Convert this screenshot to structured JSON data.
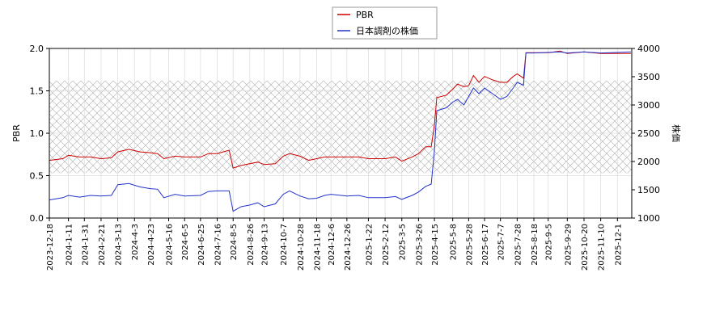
{
  "chart_data": {
    "type": "line",
    "x": [
      "2023-12-18",
      "2024-1-4",
      "2024-1-11",
      "2024-1-25",
      "2024-2-8",
      "2024-2-21",
      "2024-3-5",
      "2024-3-13",
      "2024-3-27",
      "2024-4-10",
      "2024-4-23",
      "2024-5-2",
      "2024-5-10",
      "2024-5-24",
      "2024-6-5",
      "2024-6-25",
      "2024-7-5",
      "2024-7-16",
      "2024-7-31",
      "2024-8-5",
      "2024-8-15",
      "2024-8-26",
      "2024-9-5",
      "2024-9-13",
      "2024-9-27",
      "2024-10-7",
      "2024-10-15",
      "2024-10-28",
      "2024-11-8",
      "2024-11-18",
      "2024-11-28",
      "2024-12-6",
      "2024-12-26",
      "2025-1-10",
      "2025-1-22",
      "2025-2-12",
      "2025-2-25",
      "2025-3-5",
      "2025-3-18",
      "2025-3-26",
      "2025-4-4",
      "2025-4-11",
      "2025-4-15",
      "2025-4-18",
      "2025-4-30",
      "2025-5-8",
      "2025-5-14",
      "2025-5-22",
      "2025-5-28",
      "2025-6-3",
      "2025-6-10",
      "2025-6-17",
      "2025-6-27",
      "2025-7-7",
      "2025-7-15",
      "2025-7-23",
      "2025-7-28",
      "2025-8-5",
      "2025-8-8",
      "2025-8-18",
      "2025-9-5",
      "2025-9-20",
      "2025-9-29",
      "2025-10-20",
      "2025-11-10",
      "2025-12-1",
      "2025-12-18"
    ],
    "series": [
      {
        "name": "PBR",
        "color": "#cc0000",
        "axis": "y",
        "values": [
          0.68,
          0.7,
          0.74,
          0.72,
          0.72,
          0.7,
          0.71,
          0.78,
          0.81,
          0.78,
          0.77,
          0.76,
          0.7,
          0.73,
          0.72,
          0.72,
          0.76,
          0.76,
          0.8,
          0.59,
          0.62,
          0.64,
          0.66,
          0.63,
          0.64,
          0.73,
          0.76,
          0.73,
          0.68,
          0.7,
          0.72,
          0.72,
          0.72,
          0.72,
          0.7,
          0.7,
          0.72,
          0.67,
          0.72,
          0.76,
          0.84,
          0.84,
          1.1,
          1.42,
          1.45,
          1.52,
          1.58,
          1.55,
          1.56,
          1.68,
          1.6,
          1.67,
          1.63,
          1.6,
          1.6,
          1.67,
          1.7,
          1.65,
          1.95,
          1.95,
          1.95,
          1.97,
          1.94,
          1.96,
          1.94,
          1.94,
          1.94
        ]
      },
      {
        "name": "日本調剤の株価",
        "color": "#2233cc",
        "axis": "y2",
        "values": [
          1320,
          1360,
          1400,
          1370,
          1400,
          1390,
          1400,
          1590,
          1610,
          1550,
          1520,
          1510,
          1360,
          1420,
          1390,
          1400,
          1470,
          1480,
          1480,
          1120,
          1200,
          1230,
          1270,
          1200,
          1250,
          1420,
          1480,
          1390,
          1340,
          1350,
          1400,
          1420,
          1390,
          1400,
          1360,
          1360,
          1380,
          1330,
          1400,
          1460,
          1560,
          1600,
          2200,
          2900,
          2950,
          3050,
          3100,
          3000,
          3150,
          3300,
          3200,
          3300,
          3200,
          3100,
          3150,
          3300,
          3400,
          3350,
          3920,
          3920,
          3930,
          3940,
          3920,
          3940,
          3920,
          3930,
          3940
        ]
      }
    ],
    "xlim": [
      "2023-12-18",
      "2025-12-19"
    ],
    "xticks": [
      "2023-12-18",
      "2024-1-11",
      "2024-1-31",
      "2024-2-21",
      "2024-3-13",
      "2024-4-3",
      "2024-4-23",
      "2024-5-16",
      "2024-6-5",
      "2024-6-25",
      "2024-7-16",
      "2024-8-5",
      "2024-8-26",
      "2024-9-13",
      "2024-10-7",
      "2024-10-28",
      "2024-11-18",
      "2024-12-6",
      "2024-12-26",
      "2025-1-22",
      "2025-2-12",
      "2025-3-5",
      "2025-3-26",
      "2025-4-15",
      "2025-5-8",
      "2025-5-28",
      "2025-6-17",
      "2025-7-7",
      "2025-7-28",
      "2025-8-18",
      "2025-9-5",
      "2025-9-29",
      "2025-10-20",
      "2025-11-10",
      "2025-12-1"
    ],
    "ylabel": "PBR",
    "ylim": [
      0,
      2
    ],
    "yticks": [
      {
        "value": 0,
        "label": "0.0"
      },
      {
        "value": 0.5,
        "label": "0.5"
      },
      {
        "value": 1,
        "label": "1.0"
      },
      {
        "value": 1.5,
        "label": "1.5"
      },
      {
        "value": 2,
        "label": "2.0"
      }
    ],
    "y2label": "株価",
    "y2lim": [
      1000,
      4000
    ],
    "y2ticks": [
      1000,
      1500,
      2000,
      2500,
      3000,
      3500,
      4000
    ],
    "shaded_range": [
      0.53,
      1.62
    ],
    "grid": true,
    "legend": "top"
  }
}
